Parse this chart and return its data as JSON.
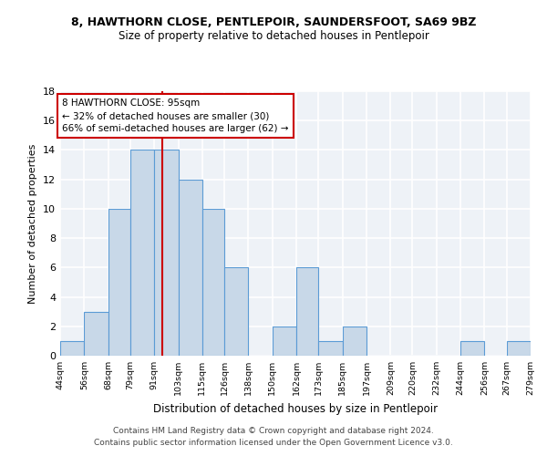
{
  "title": "8, HAWTHORN CLOSE, PENTLEPOIR, SAUNDERSFOOT, SA69 9BZ",
  "subtitle": "Size of property relative to detached houses in Pentlepoir",
  "xlabel": "Distribution of detached houses by size in Pentlepoir",
  "ylabel": "Number of detached properties",
  "bar_color": "#c8d8e8",
  "bar_edge_color": "#5b9bd5",
  "background_color": "#eef2f7",
  "grid_color": "#ffffff",
  "bin_edges": [
    44,
    56,
    68,
    79,
    91,
    103,
    115,
    126,
    138,
    150,
    162,
    173,
    185,
    197,
    209,
    220,
    232,
    244,
    256,
    267,
    279
  ],
  "counts": [
    1,
    3,
    10,
    14,
    14,
    12,
    10,
    6,
    0,
    2,
    6,
    1,
    2,
    0,
    0,
    0,
    0,
    1,
    0,
    1
  ],
  "tick_labels": [
    "44sqm",
    "56sqm",
    "68sqm",
    "79sqm",
    "91sqm",
    "103sqm",
    "115sqm",
    "126sqm",
    "138sqm",
    "150sqm",
    "162sqm",
    "173sqm",
    "185sqm",
    "197sqm",
    "209sqm",
    "220sqm",
    "232sqm",
    "244sqm",
    "256sqm",
    "267sqm",
    "279sqm"
  ],
  "property_line_x": 95,
  "annotation_line1": "8 HAWTHORN CLOSE: 95sqm",
  "annotation_line2": "← 32% of detached houses are smaller (30)",
  "annotation_line3": "66% of semi-detached houses are larger (62) →",
  "annotation_box_color": "#cc0000",
  "ylim": [
    0,
    18
  ],
  "yticks": [
    0,
    2,
    4,
    6,
    8,
    10,
    12,
    14,
    16,
    18
  ],
  "footer_line1": "Contains HM Land Registry data © Crown copyright and database right 2024.",
  "footer_line2": "Contains public sector information licensed under the Open Government Licence v3.0."
}
